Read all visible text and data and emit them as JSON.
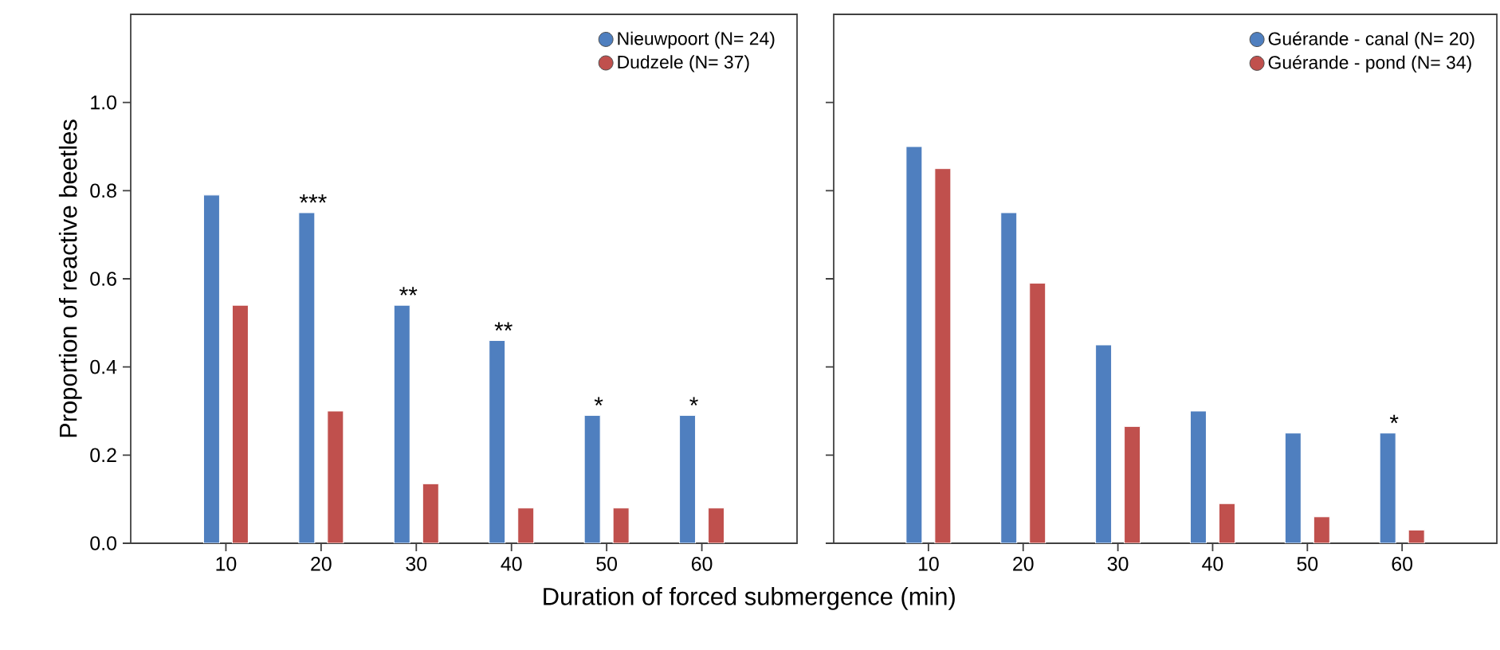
{
  "chart_data": [
    {
      "type": "bar",
      "ylabel": "Proportion of reactive beetles",
      "xlabel": "Duration of forced submergence (min)",
      "categories": [
        "10",
        "20",
        "30",
        "40",
        "50",
        "60"
      ],
      "series": [
        {
          "name": "Nieuwpoort (N= 24)",
          "color": "#4f7fbf",
          "values": [
            0.79,
            0.75,
            0.54,
            0.46,
            0.29,
            0.29
          ]
        },
        {
          "name": "Dudzele (N= 37)",
          "color": "#c0504d",
          "values": [
            0.54,
            0.3,
            0.135,
            0.08,
            0.08,
            0.08
          ]
        }
      ],
      "ylim": [
        0,
        1.2
      ],
      "yticks": [
        {
          "value": 0,
          "label": "0.0"
        },
        {
          "value": 0.2,
          "label": "0.2"
        },
        {
          "value": 0.4,
          "label": "0.4"
        },
        {
          "value": 0.6,
          "label": "0.6"
        },
        {
          "value": 0.8,
          "label": "0.8"
        },
        {
          "value": 1.0,
          "label": "1.0"
        }
      ],
      "annotations": [
        {
          "text": "***",
          "x": "20",
          "y": 0.75
        },
        {
          "text": "**",
          "x": "30",
          "y": 0.54
        },
        {
          "text": "**",
          "x": "40",
          "y": 0.46
        },
        {
          "text": "*",
          "x": "50",
          "y": 0.29
        },
        {
          "text": "*",
          "x": "60",
          "y": 0.29
        }
      ],
      "legend": "top right",
      "grid": false
    },
    {
      "type": "bar",
      "categories": [
        "10",
        "20",
        "30",
        "40",
        "50",
        "60"
      ],
      "series": [
        {
          "name": "Guérande - canal (N= 20)",
          "color": "#4f7fbf",
          "values": [
            0.9,
            0.75,
            0.45,
            0.3,
            0.25,
            0.25
          ]
        },
        {
          "name": "Guérande - pond (N= 34)",
          "color": "#c0504d",
          "values": [
            0.85,
            0.59,
            0.265,
            0.09,
            0.06,
            0.03
          ]
        }
      ],
      "ylim": [
        0,
        1.2
      ],
      "yticks": [
        {
          "value": 0,
          "label": null
        },
        {
          "value": 0.2,
          "label": null
        },
        {
          "value": 0.4,
          "label": null
        },
        {
          "value": 0.6,
          "label": null
        },
        {
          "value": 0.8,
          "label": null
        },
        {
          "value": 1.0,
          "label": null
        }
      ],
      "tick_labels": "x",
      "annotations": [
        {
          "text": "*",
          "x": "60",
          "y": 0.25
        }
      ],
      "legend": "top right",
      "grid": false
    }
  ]
}
